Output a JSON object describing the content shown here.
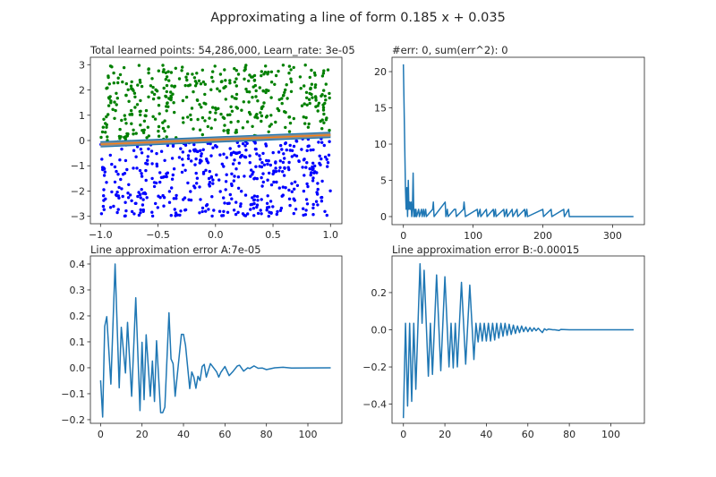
{
  "figure_title": "Approximating a line of form 0.185 x + 0.035",
  "chart_data": [
    {
      "id": "scatter",
      "type": "scatter",
      "title": "Total learned points: 54,286,000, Learn_rate: 3e-05",
      "xlim": [
        -1.088,
        1.099
      ],
      "ylim": [
        -3.294,
        3.294
      ],
      "xticks": {
        "values": [
          -1,
          -0.5,
          0,
          0.5,
          1
        ],
        "labels": [
          "−1.0",
          "−0.5",
          "0.0",
          "0.5",
          "1.0"
        ]
      },
      "yticks": {
        "values": [
          -3,
          -2,
          -1,
          0,
          1,
          2,
          3
        ],
        "labels": [
          "−3",
          "−2",
          "−1",
          "0",
          "1",
          "2",
          "3"
        ]
      },
      "classes": [
        {
          "label": "above line",
          "color": "#008000"
        },
        {
          "label": "below line",
          "color": "#0000ff"
        }
      ],
      "point_domain": {
        "x": [
          -1,
          1
        ],
        "y": [
          -3,
          3
        ]
      },
      "line": {
        "slope": 0.185,
        "intercept": 0.035,
        "x": [
          -1,
          1
        ]
      },
      "line_colors": {
        "outer": "#1f77b4",
        "fill": "#8c8c8c",
        "center": "#ff7f0e"
      }
    },
    {
      "id": "errors",
      "type": "line",
      "title": "#err: 0, sum(err^2): 0",
      "xlim": [
        -16.3,
        345.7
      ],
      "ylim": [
        -1.11,
        21.98
      ],
      "xticks": {
        "values": [
          0,
          100,
          200,
          300
        ],
        "labels": [
          "0",
          "100",
          "200",
          "300"
        ]
      },
      "yticks": {
        "values": [
          0,
          5,
          10,
          15,
          20
        ],
        "labels": [
          "0",
          "5",
          "10",
          "15",
          "20"
        ]
      },
      "color": "#1f77b4",
      "x": [
        0,
        3,
        4,
        5,
        6,
        7,
        8,
        9,
        10,
        11,
        12,
        13,
        14,
        15,
        16,
        17,
        18,
        19,
        22,
        23,
        26,
        27,
        29,
        30,
        32,
        33,
        42,
        43,
        44,
        60,
        61,
        63,
        64,
        73,
        75,
        76,
        86,
        87,
        88,
        89,
        106,
        107,
        110,
        111,
        119,
        120,
        129,
        130,
        132,
        133,
        144,
        145,
        148,
        149,
        156,
        157,
        163,
        164,
        174,
        175,
        177,
        178,
        200,
        201,
        212,
        213,
        230,
        231,
        237,
        238,
        330
      ],
      "y": [
        21,
        4,
        1,
        4,
        0,
        5,
        1,
        2,
        1,
        2,
        0,
        1,
        6,
        0,
        1,
        0,
        1,
        0,
        1,
        0,
        1,
        0,
        1,
        0,
        1,
        0,
        1,
        2,
        0,
        2,
        0,
        1,
        0,
        1,
        1,
        0,
        1,
        2,
        1,
        0,
        1,
        0,
        1,
        0,
        1,
        0,
        1,
        0,
        1,
        0,
        1,
        0,
        1,
        0,
        1,
        0,
        1,
        0,
        1,
        0,
        1,
        0,
        1,
        0,
        1,
        0,
        1,
        0,
        1,
        0,
        0
      ]
    },
    {
      "id": "error-a",
      "type": "line",
      "title": "Line approximation error A:7e-05",
      "xlim": [
        -4.9,
        116.4
      ],
      "ylim": [
        -0.214,
        0.431
      ],
      "xticks": {
        "values": [
          0,
          20,
          40,
          60,
          80,
          100
        ],
        "labels": [
          "0",
          "20",
          "40",
          "60",
          "80",
          "100"
        ]
      },
      "yticks": {
        "values": [
          -0.2,
          -0.1,
          0,
          0.1,
          0.2,
          0.3,
          0.4
        ],
        "labels": [
          "−0.2",
          "−0.1",
          "0.0",
          "0.1",
          "0.2",
          "0.3",
          "0.4"
        ]
      },
      "color": "#1f77b4",
      "x": [
        0,
        1,
        2,
        3,
        5,
        7,
        9,
        10,
        12,
        13,
        15,
        17,
        19,
        20,
        21,
        22,
        24,
        25,
        26,
        27,
        29,
        30,
        31,
        33,
        34,
        35,
        36,
        38,
        39,
        40,
        41,
        43,
        44,
        45,
        46,
        47,
        48,
        49,
        50,
        51,
        53,
        56,
        57,
        58,
        60,
        62,
        64,
        66,
        67,
        69,
        71,
        72,
        74,
        76,
        78,
        80,
        84,
        88,
        92,
        111
      ],
      "y": [
        -0.048,
        -0.19,
        0.16,
        0.197,
        -0.063,
        0.4,
        -0.077,
        0.156,
        -0.02,
        0.175,
        -0.11,
        0.27,
        -0.165,
        0.098,
        -0.123,
        0.127,
        -0.11,
        0.026,
        -0.13,
        0.104,
        -0.173,
        -0.173,
        -0.152,
        0.212,
        0.034,
        0.016,
        -0.11,
        0.051,
        0.129,
        0.129,
        0.086,
        -0.08,
        -0.016,
        -0.036,
        -0.079,
        -0.033,
        -0.049,
        0.005,
        0.013,
        -0.036,
        0.016,
        -0.016,
        -0.036,
        -0.018,
        0.005,
        -0.03,
        -0.013,
        0.007,
        0.01,
        -0.013,
        0,
        -0.003,
        0.007,
        -0.002,
        -0.001,
        -0.007,
        0,
        0.002,
        -0.001,
        0
      ]
    },
    {
      "id": "error-b",
      "type": "line",
      "title": "Line approximation error B:-0.00015",
      "xlim": [
        -5.5,
        116.2
      ],
      "ylim": [
        -0.503,
        0.397
      ],
      "xticks": {
        "values": [
          0,
          20,
          40,
          60,
          80,
          100
        ],
        "labels": [
          "0",
          "20",
          "40",
          "60",
          "80",
          "100"
        ]
      },
      "yticks": {
        "values": [
          -0.4,
          -0.2,
          0,
          0.2
        ],
        "labels": [
          "−0.4",
          "−0.2",
          "0.0",
          "0.2"
        ]
      },
      "color": "#1f77b4",
      "x": [
        0,
        1,
        2,
        3,
        4,
        5,
        6,
        8,
        9,
        10,
        12,
        13,
        14,
        16,
        18,
        20,
        22,
        23,
        24,
        25,
        26,
        28,
        30,
        32,
        34,
        35,
        36,
        37,
        38,
        39,
        40,
        41,
        42,
        43,
        44,
        45,
        46,
        47,
        48,
        49,
        50,
        51,
        52,
        53,
        54,
        55,
        56,
        57,
        58,
        59,
        60,
        61,
        62,
        63,
        64,
        65,
        66,
        67,
        68,
        69,
        70,
        72,
        73,
        75,
        76,
        80,
        111
      ],
      "y": [
        -0.475,
        0.035,
        -0.41,
        0.035,
        -0.385,
        0.035,
        -0.32,
        0.355,
        0.035,
        0.32,
        -0.25,
        0.035,
        -0.24,
        0.295,
        -0.22,
        0.285,
        -0.2,
        0.035,
        -0.205,
        0.035,
        -0.2,
        0.255,
        -0.185,
        0.24,
        -0.16,
        0.035,
        -0.065,
        0.035,
        -0.06,
        0.035,
        -0.06,
        0.035,
        -0.06,
        0.035,
        -0.055,
        0.035,
        -0.045,
        0.035,
        -0.035,
        0.035,
        -0.03,
        0.03,
        -0.025,
        0.025,
        -0.02,
        0.02,
        -0.015,
        0.02,
        -0.01,
        0.015,
        -0.01,
        0.012,
        -0.008,
        0.01,
        -0.005,
        0.008,
        -0.004,
        -0.015,
        0.005,
        -0.002,
        0.004,
        0,
        0,
        -0.004,
        0.002,
        0,
        0
      ]
    }
  ]
}
